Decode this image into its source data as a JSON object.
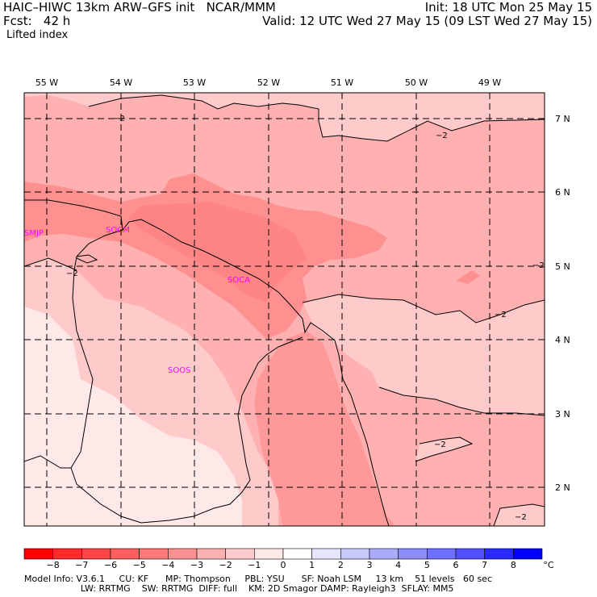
{
  "header": {
    "left1": "HAIC–HIWC 13km ARW–GFS init   NCAR/MMM",
    "left2": "Fcst:   42 h",
    "right1": "Init: 18 UTC Mon 25 May 15",
    "right2": "Valid: 12 UTC Wed 27 May 15 (09 LST Wed 27 May 15)",
    "field": "Lifted index"
  },
  "lon_labels": [
    "55 W",
    "54 W",
    "53 W",
    "52 W",
    "51 W",
    "50 W",
    "49 W"
  ],
  "lat_labels": [
    "7 N",
    "6 N",
    "5 N",
    "4 N",
    "3 N",
    "2 N"
  ],
  "stations": [
    "SMJP",
    "SOCM",
    "SOCA",
    "SOOS"
  ],
  "contour_label": "−2",
  "colorbar": {
    "ticks": [
      "−8",
      "−7",
      "−6",
      "−5",
      "−4",
      "−3",
      "−2",
      "−1",
      "0",
      "1",
      "2",
      "3",
      "4",
      "5",
      "6",
      "7",
      "8"
    ],
    "unit": "°C",
    "colors": [
      "#ff0000",
      "#ff2a2a",
      "#ff4545",
      "#ff5e5e",
      "#ff7878",
      "#ff9090",
      "#ffb0b0",
      "#ffcaca",
      "#ffe8e8",
      "#ffffff",
      "#e6e6ff",
      "#c8c8ff",
      "#aaaaff",
      "#8c8cff",
      "#6e6eff",
      "#5050ff",
      "#2a2aff",
      "#0000ff"
    ]
  },
  "footer": {
    "line1": "Model Info: V3.6.1     CU: KF      MP: Thompson     PBL: YSU      SF: Noah LSM     13 km    51 levels   60 sec",
    "line2": "                    LW: RRTMG    SW: RRTMG  DIFF: full    KM: 2D Smagor DAMP: Rayleigh3  SFLAY: MM5"
  }
}
